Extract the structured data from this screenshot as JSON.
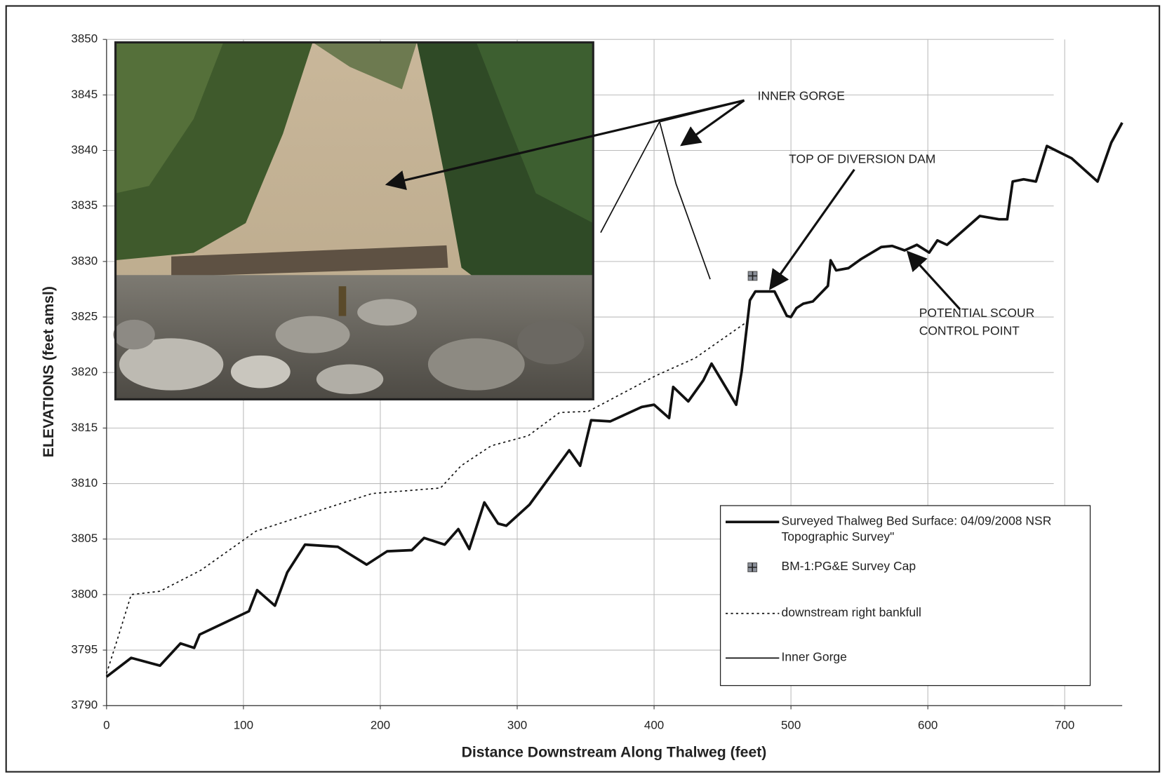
{
  "chart_data": {
    "type": "line",
    "xlabel": "Distance Downstream Along Thalweg (feet)",
    "ylabel": "ELEVATIONS (feet amsl)",
    "xlim": [
      0,
      742
    ],
    "ylim": [
      3790,
      3850
    ],
    "xticks": [
      0,
      100,
      200,
      300,
      400,
      500,
      600,
      700
    ],
    "yticks": [
      3790,
      3795,
      3800,
      3805,
      3810,
      3815,
      3820,
      3825,
      3830,
      3835,
      3840,
      3845,
      3850
    ],
    "grid": true,
    "legend": "lower right",
    "annotations": [
      {
        "text": "INNER GORGE"
      },
      {
        "text": "TOP OF DIVERSION DAM"
      },
      {
        "text": [
          "POTENTIAL SCOUR",
          "CONTROL POINT"
        ]
      }
    ],
    "series": [
      {
        "name": "Surveyed Thalweg Bed Surface: 04/09/2008 NSR Topographic Survey\"",
        "color": "#111111",
        "linestyle": "solid",
        "linewidth": "thick",
        "x": [
          0,
          18,
          39,
          54,
          64,
          68,
          104,
          110,
          123,
          132,
          145,
          169,
          190,
          205,
          223,
          232,
          247,
          257,
          265,
          276,
          286,
          292,
          309,
          338,
          346,
          354,
          368,
          391,
          400,
          411,
          414,
          425,
          436,
          442,
          460,
          464,
          470,
          474,
          482,
          488,
          497,
          500,
          504,
          509,
          516,
          527,
          529,
          533,
          542,
          551,
          566,
          574,
          583,
          592,
          601,
          607,
          614,
          638,
          652,
          658,
          662,
          670,
          679,
          687,
          705,
          724,
          734,
          742
        ],
        "values": [
          3792.6,
          3794.3,
          3793.6,
          3795.6,
          3795.2,
          3796.4,
          3798.5,
          3800.4,
          3799.0,
          3802.0,
          3804.5,
          3804.3,
          3802.7,
          3803.9,
          3804.0,
          3805.1,
          3804.5,
          3805.9,
          3804.1,
          3808.3,
          3806.4,
          3806.2,
          3808.1,
          3813.0,
          3811.6,
          3815.7,
          3815.6,
          3816.9,
          3817.1,
          3815.9,
          3818.7,
          3817.4,
          3819.3,
          3820.8,
          3817.1,
          3820.1,
          3826.5,
          3827.3,
          3827.3,
          3827.3,
          3825.1,
          3825.0,
          3825.8,
          3826.2,
          3826.4,
          3827.8,
          3830.1,
          3829.2,
          3829.4,
          3830.2,
          3831.3,
          3831.4,
          3831.0,
          3831.5,
          3830.8,
          3831.9,
          3831.5,
          3834.1,
          3833.8,
          3833.8,
          3837.2,
          3837.4,
          3837.2,
          3840.4,
          3839.3,
          3837.2,
          3840.7,
          3842.5
        ]
      },
      {
        "name": "BM-1:PG&E Survey Cap",
        "color": "#8a8f99",
        "marker": "plus-square",
        "x": [
          472
        ],
        "values": [
          3828.7
        ]
      },
      {
        "name": "downstream right bankfull",
        "color": "#111111",
        "linestyle": "dotted",
        "linewidth": "thin",
        "x": [
          0,
          9,
          18,
          39,
          69,
          109,
          151,
          194,
          244,
          259,
          281,
          308,
          331,
          352,
          401,
          430,
          466
        ],
        "values": [
          3792.9,
          3796.4,
          3800.0,
          3800.3,
          3802.2,
          3805.7,
          3807.4,
          3809.1,
          3809.6,
          3811.6,
          3813.4,
          3814.3,
          3816.4,
          3816.5,
          3819.7,
          3821.3,
          3824.4
        ]
      },
      {
        "name": "Inner Gorge",
        "color": "#111111",
        "linestyle": "solid",
        "linewidth": "thin",
        "x": [
          361,
          404,
          416,
          441
        ],
        "values": [
          3832.6,
          3842.6,
          3837.0,
          3828.4
        ]
      }
    ]
  }
}
